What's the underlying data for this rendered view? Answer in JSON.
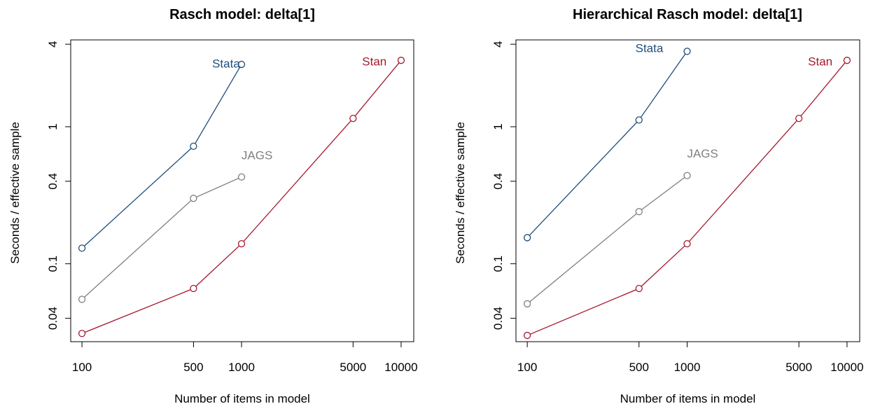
{
  "colors": {
    "Stata": "#1f4e7a",
    "JAGS": "#7f7f7f",
    "Stan": "#a6192e",
    "axis": "#000000"
  },
  "chart_data": [
    {
      "type": "line",
      "title": "Rasch model: delta[1]",
      "xlabel": "Number of items in model",
      "ylabel": "Seconds / effective sample",
      "xscale": "log",
      "yscale": "log",
      "xlim": [
        85,
        12000
      ],
      "ylim": [
        0.027,
        4.3
      ],
      "xticks": [
        100,
        500,
        1000,
        5000,
        10000
      ],
      "xtick_labels": [
        "100",
        "500",
        "1000",
        "5000",
        "10000"
      ],
      "yticks": [
        0.04,
        0.1,
        0.4,
        1,
        4
      ],
      "ytick_labels": [
        "0.04",
        "0.1",
        "0.4",
        "1",
        "4"
      ],
      "grid": false,
      "legend": "none (series labels printed next to lines)",
      "series": [
        {
          "name": "Stata",
          "x": [
            100,
            500,
            1000
          ],
          "y": [
            0.13,
            0.72,
            2.85
          ],
          "label": "Stata",
          "label_pos": [
            800,
            2.9
          ]
        },
        {
          "name": "JAGS",
          "x": [
            100,
            500,
            1000
          ],
          "y": [
            0.055,
            0.3,
            0.43
          ],
          "label": "JAGS",
          "label_pos": [
            1250,
            0.62
          ]
        },
        {
          "name": "Stan",
          "x": [
            100,
            500,
            1000,
            5000,
            10000
          ],
          "y": [
            0.031,
            0.066,
            0.14,
            1.15,
            3.05
          ],
          "label": "Stan",
          "label_pos": [
            6800,
            3.0
          ]
        }
      ]
    },
    {
      "type": "line",
      "title": "Hierarchical Rasch model: delta[1]",
      "xlabel": "Number of items in model",
      "ylabel": "Seconds / effective sample",
      "xscale": "log",
      "yscale": "log",
      "xlim": [
        85,
        12000
      ],
      "ylim": [
        0.027,
        4.3
      ],
      "xticks": [
        100,
        500,
        1000,
        5000,
        10000
      ],
      "xtick_labels": [
        "100",
        "500",
        "1000",
        "5000",
        "10000"
      ],
      "yticks": [
        0.04,
        0.1,
        0.4,
        1,
        4
      ],
      "ytick_labels": [
        "0.04",
        "0.1",
        "0.4",
        "1",
        "4"
      ],
      "grid": false,
      "legend": "none (series labels printed next to lines)",
      "series": [
        {
          "name": "Stata",
          "x": [
            100,
            500,
            1000
          ],
          "y": [
            0.155,
            1.12,
            3.55
          ],
          "label": "Stata",
          "label_pos": [
            580,
            3.75
          ]
        },
        {
          "name": "JAGS",
          "x": [
            100,
            500,
            1000
          ],
          "y": [
            0.051,
            0.24,
            0.44
          ],
          "label": "JAGS",
          "label_pos": [
            1250,
            0.64
          ]
        },
        {
          "name": "Stan",
          "x": [
            100,
            500,
            1000,
            5000,
            10000
          ],
          "y": [
            0.03,
            0.066,
            0.14,
            1.15,
            3.05
          ],
          "label": "Stan",
          "label_pos": [
            6800,
            3.0
          ]
        }
      ]
    }
  ]
}
